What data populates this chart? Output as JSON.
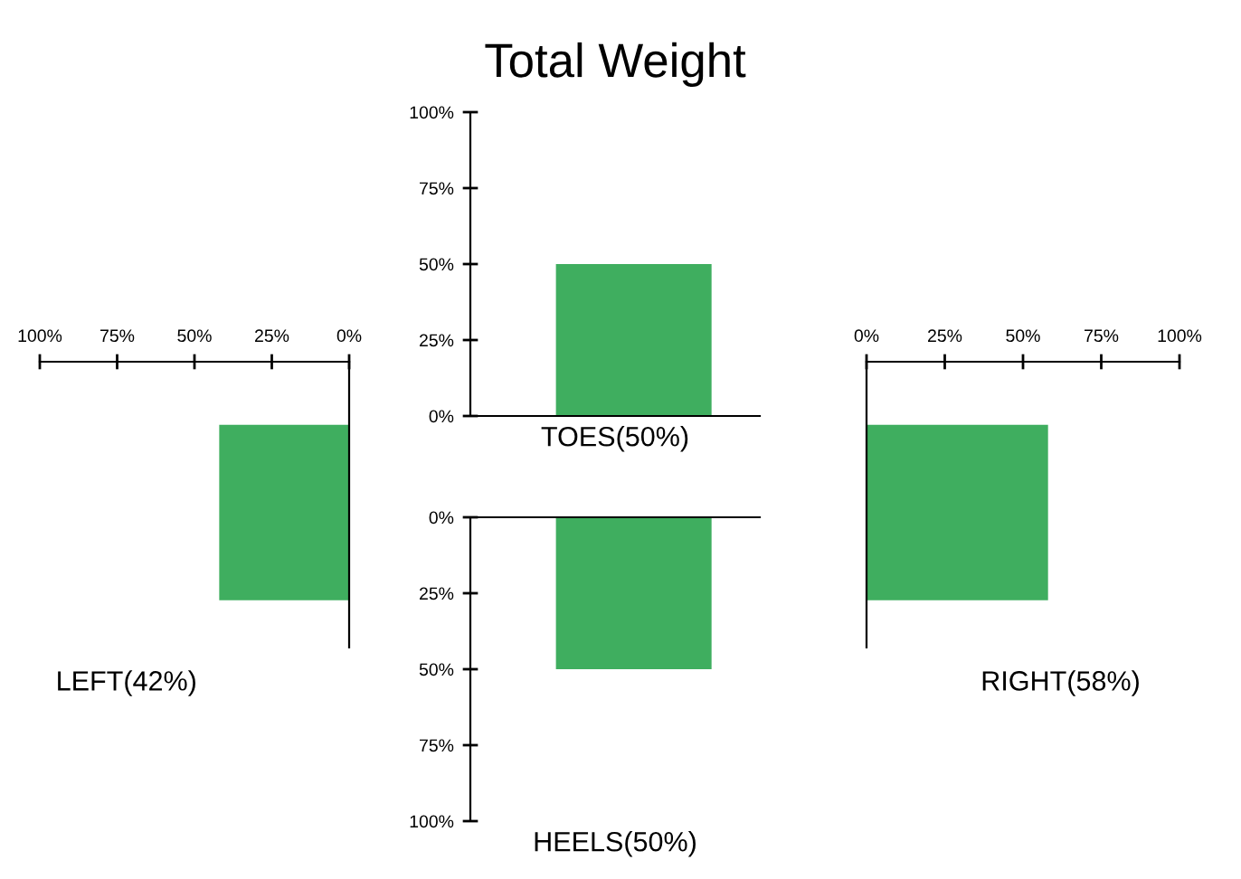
{
  "chart_data": [
    {
      "type": "bar",
      "orientation": "horizontal",
      "categories": [
        null
      ],
      "values": [
        42
      ],
      "color": "#3fae5f",
      "xlabel": "LEFT(42%)",
      "xlim": [
        100,
        0
      ],
      "xticks": [
        {
          "value": 100,
          "label": "100%"
        },
        {
          "value": 75,
          "label": "75%"
        },
        {
          "value": 50,
          "label": "50%"
        },
        {
          "value": 25,
          "label": "25%"
        },
        {
          "value": 0,
          "label": "0%"
        }
      ],
      "grid": false,
      "legend": false
    },
    {
      "type": "bar",
      "title": "Total Weight",
      "categories": [
        null
      ],
      "values": [
        50
      ],
      "color": "#3fae5f",
      "xlabel": "TOES(50%)",
      "ylim": [
        0,
        100
      ],
      "yticks": [
        {
          "value": 0,
          "label": "0%"
        },
        {
          "value": 25,
          "label": "25%"
        },
        {
          "value": 50,
          "label": "50%"
        },
        {
          "value": 75,
          "label": "75%"
        },
        {
          "value": 100,
          "label": "100%"
        }
      ],
      "grid": false,
      "legend": false
    },
    {
      "type": "bar",
      "categories": [
        null
      ],
      "values": [
        50
      ],
      "color": "#3fae5f",
      "xlabel": "HEELS(50%)",
      "ylim": [
        100,
        0
      ],
      "yticks": [
        {
          "value": 0,
          "label": "0%"
        },
        {
          "value": 25,
          "label": "25%"
        },
        {
          "value": 50,
          "label": "50%"
        },
        {
          "value": 75,
          "label": "75%"
        },
        {
          "value": 100,
          "label": "100%"
        }
      ],
      "grid": false,
      "legend": false
    },
    {
      "type": "bar",
      "orientation": "horizontal",
      "categories": [
        null
      ],
      "values": [
        58
      ],
      "color": "#3fae5f",
      "xlabel": "RIGHT(58%)",
      "xlim": [
        0,
        100
      ],
      "xticks": [
        {
          "value": 0,
          "label": "0%"
        },
        {
          "value": 25,
          "label": "25%"
        },
        {
          "value": 50,
          "label": "50%"
        },
        {
          "value": 75,
          "label": "75%"
        },
        {
          "value": 100,
          "label": "100%"
        }
      ],
      "grid": false,
      "legend": false
    }
  ]
}
